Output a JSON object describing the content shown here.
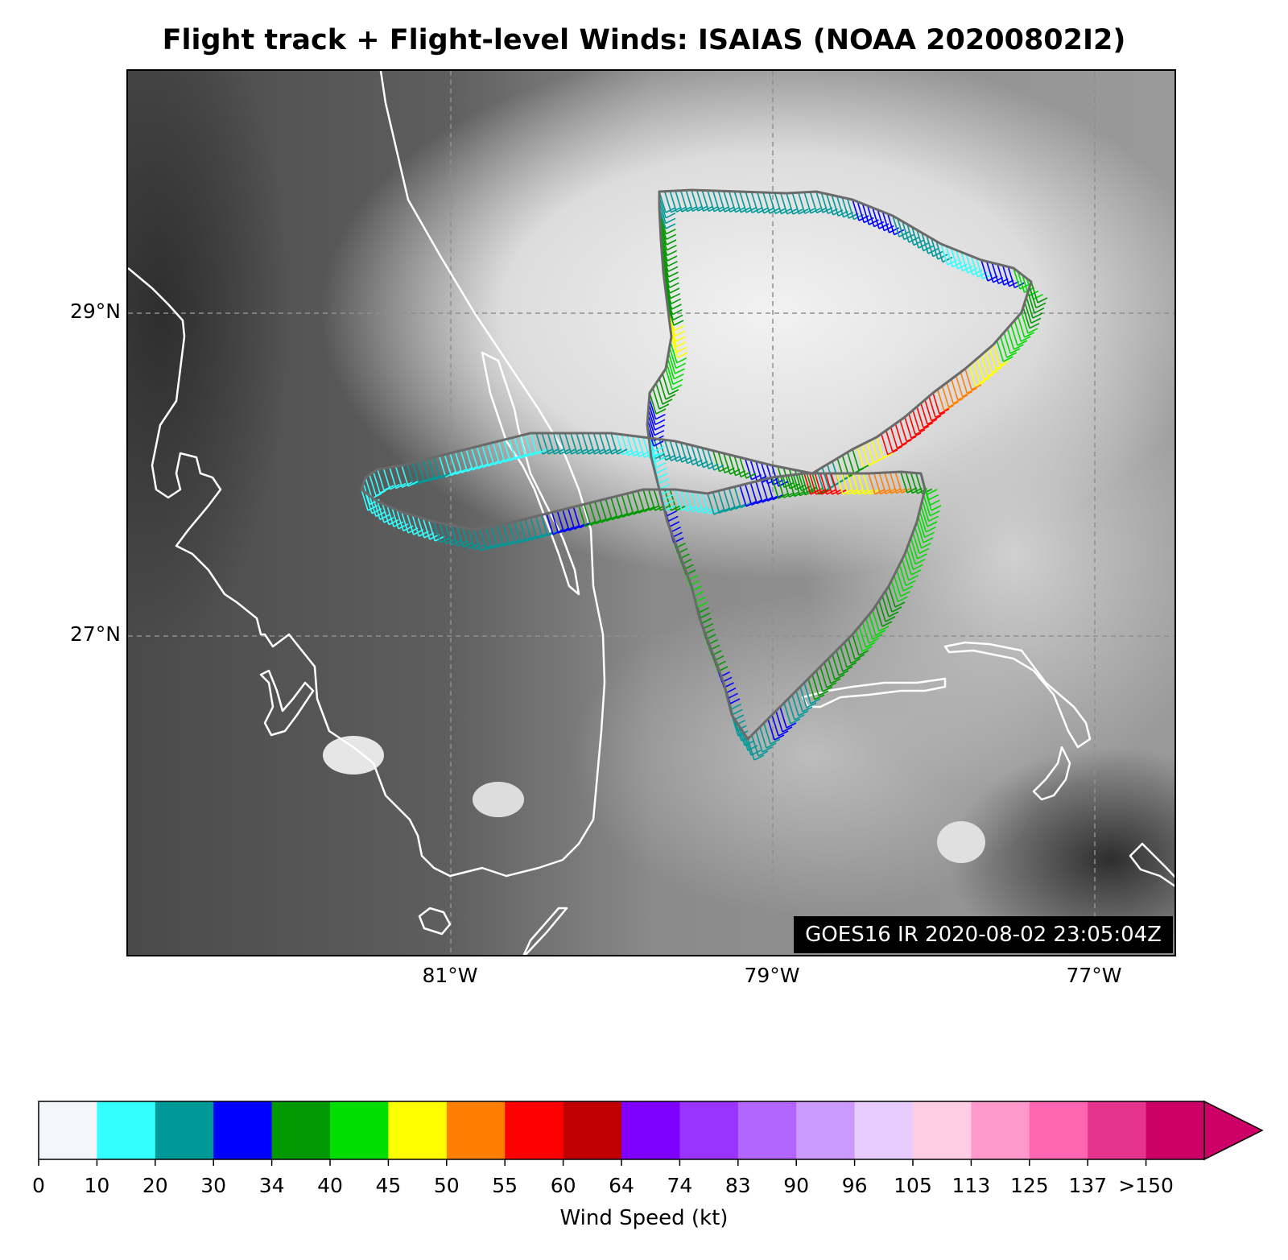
{
  "title": "Flight track + Flight-level Winds: ISAIAS (NOAA 20200802I2)",
  "map": {
    "lat_labels": [
      "29°N",
      "27°N"
    ],
    "lon_labels": [
      "81°W",
      "79°W",
      "77°W"
    ],
    "image_stamp": "GOES16 IR 2020-08-02 23:05:04Z"
  },
  "colorbar": {
    "label": "Wind Speed (kt)",
    "ticks": [
      "0",
      "10",
      "20",
      "30",
      "34",
      "40",
      "45",
      "50",
      "55",
      "60",
      "64",
      "74",
      "83",
      "90",
      "96",
      "105",
      "113",
      "125",
      "137",
      ">150"
    ],
    "colors": [
      "#f5f6fc",
      "#33ffff",
      "#009999",
      "#0000ff",
      "#009900",
      "#00dd00",
      "#ffff00",
      "#ff8000",
      "#ff0000",
      "#c00000",
      "#8000ff",
      "#9933ff",
      "#b366ff",
      "#cc99ff",
      "#e6ccff",
      "#ffcce6",
      "#ff99cc",
      "#ff66b2",
      "#e6338c",
      "#cc0066"
    ],
    "extend": "max"
  }
}
